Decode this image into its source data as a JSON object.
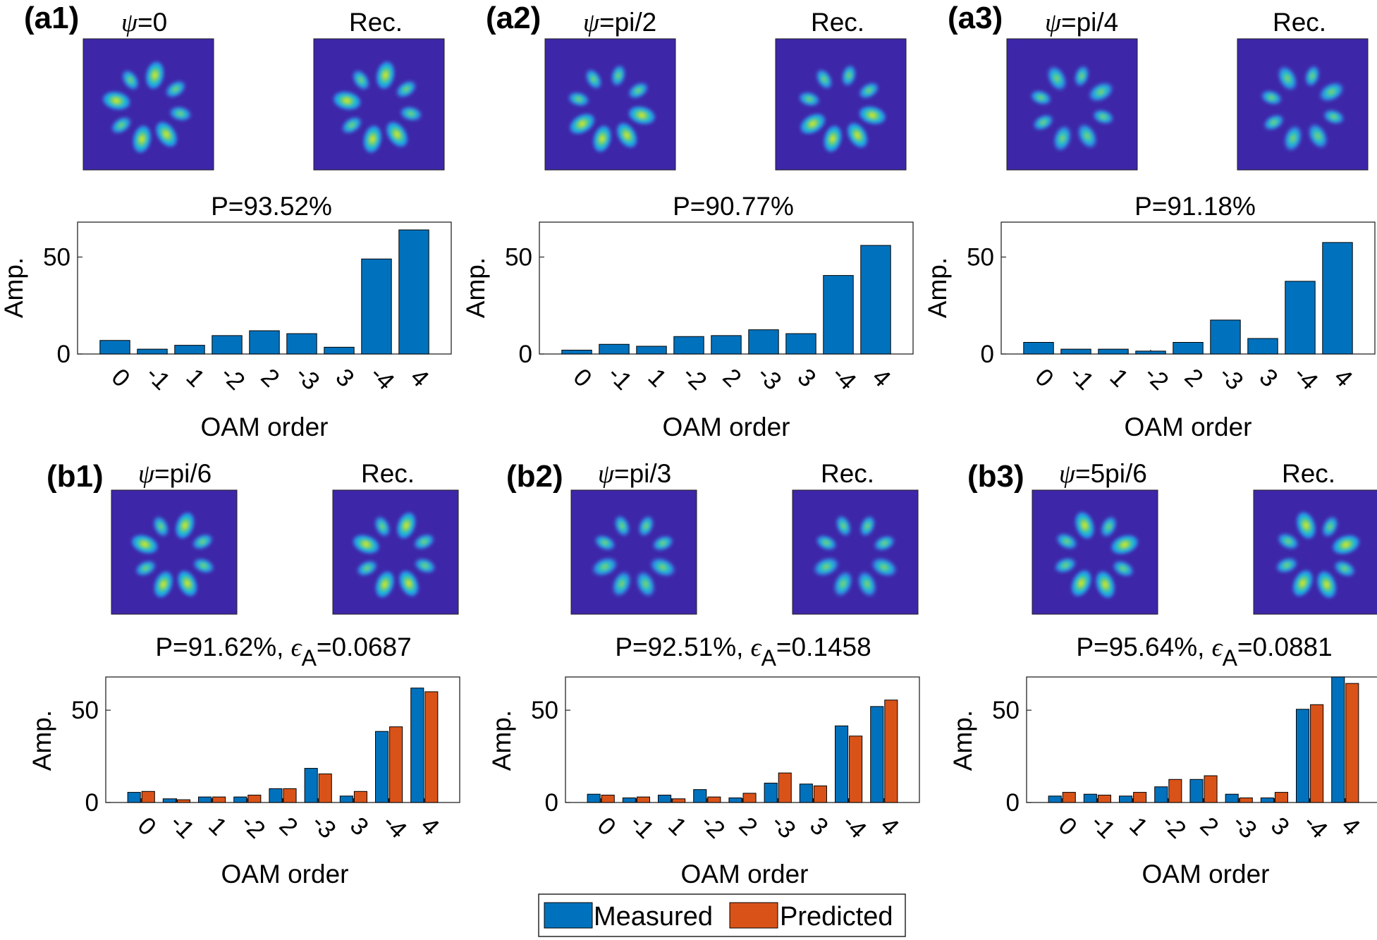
{
  "figure": {
    "colors": {
      "measured": "#0072BD",
      "predicted": "#D95319",
      "image_bg": "#3E26A8"
    },
    "psi_symbol": "ψ",
    "eps_symbol": "ϵ",
    "eps_subscript": "A",
    "legend": {
      "measured": "Measured",
      "predicted": "Predicted"
    },
    "panels": [
      {
        "label": "(a1)",
        "psi_value": "=0",
        "rec_label": "Rec.",
        "p_text": "P=93.52%",
        "eps_text": "",
        "intensity": 1.0,
        "tilt": 0
      },
      {
        "label": "(a2)",
        "psi_value": "=pi/2",
        "rec_label": "Rec.",
        "p_text": "P=90.77%",
        "eps_text": "",
        "intensity": 0.82,
        "tilt": 1
      },
      {
        "label": "(a3)",
        "psi_value": "=pi/4",
        "rec_label": "Rec.",
        "p_text": "P=91.18%",
        "eps_text": "",
        "intensity": 0.74,
        "tilt": 2
      },
      {
        "label": "(b1)",
        "psi_value": "=pi/6",
        "rec_label": "Rec.",
        "p_text": "P=91.62%, ",
        "eps_text": "=0.0687",
        "intensity": 0.85,
        "tilt": 3
      },
      {
        "label": "(b2)",
        "psi_value": "=pi/3",
        "rec_label": "Rec.",
        "p_text": "P=92.51%, ",
        "eps_text": "=0.1458",
        "intensity": 0.8,
        "tilt": 4
      },
      {
        "label": "(b3)",
        "psi_value": "=5pi/6",
        "rec_label": "Rec.",
        "p_text": "P=95.64%, ",
        "eps_text": "=0.0881",
        "intensity": 1.0,
        "tilt": 5
      }
    ]
  },
  "chart_data": [
    {
      "type": "bar",
      "title": "P=93.52%",
      "xlabel": "OAM order",
      "ylabel": "Amp.",
      "categories": [
        "0",
        "-1",
        "1",
        "-2",
        "2",
        "-3",
        "3",
        "-4",
        "4"
      ],
      "ylim": [
        0,
        68
      ],
      "yticks": [
        0,
        50
      ],
      "series": [
        {
          "name": "Measured",
          "values": [
            7,
            2.5,
            4.5,
            9.5,
            12,
            10.5,
            3.5,
            49,
            64
          ]
        }
      ]
    },
    {
      "type": "bar",
      "title": "P=90.77%",
      "xlabel": "OAM order",
      "ylabel": "Amp.",
      "categories": [
        "0",
        "-1",
        "1",
        "-2",
        "2",
        "-3",
        "3",
        "-4",
        "4"
      ],
      "ylim": [
        0,
        68
      ],
      "yticks": [
        0,
        50
      ],
      "series": [
        {
          "name": "Measured",
          "values": [
            2,
            5,
            4,
            9,
            9.5,
            12.5,
            10.5,
            40.5,
            56
          ]
        }
      ]
    },
    {
      "type": "bar",
      "title": "P=91.18%",
      "xlabel": "OAM order",
      "ylabel": "Amp.",
      "categories": [
        "0",
        "-1",
        "1",
        "-2",
        "2",
        "-3",
        "3",
        "-4",
        "4"
      ],
      "ylim": [
        0,
        68
      ],
      "yticks": [
        0,
        50
      ],
      "series": [
        {
          "name": "Measured",
          "values": [
            6,
            2.5,
            2.5,
            1.5,
            6,
            17.5,
            8,
            37.5,
            57.5
          ]
        }
      ]
    },
    {
      "type": "bar",
      "title": "P=91.62%, ϵA=0.0687",
      "xlabel": "OAM order",
      "ylabel": "Amp.",
      "categories": [
        "0",
        "-1",
        "1",
        "-2",
        "2",
        "-3",
        "3",
        "-4",
        "4"
      ],
      "ylim": [
        0,
        68
      ],
      "yticks": [
        0,
        50
      ],
      "series": [
        {
          "name": "Measured",
          "values": [
            5.5,
            2,
            3,
            3,
            7.5,
            18.5,
            3.5,
            38.5,
            62
          ]
        },
        {
          "name": "Predicted",
          "values": [
            6,
            1.5,
            3,
            4,
            7.5,
            15.5,
            6,
            41,
            60
          ]
        }
      ]
    },
    {
      "type": "bar",
      "title": "P=92.51%, ϵA=0.1458",
      "xlabel": "OAM order",
      "ylabel": "Amp.",
      "categories": [
        "0",
        "-1",
        "1",
        "-2",
        "2",
        "-3",
        "3",
        "-4",
        "4"
      ],
      "ylim": [
        0,
        68
      ],
      "yticks": [
        0,
        50
      ],
      "series": [
        {
          "name": "Measured",
          "values": [
            4.5,
            2.5,
            4,
            7,
            2.5,
            10.5,
            10,
            41.5,
            52
          ]
        },
        {
          "name": "Predicted",
          "values": [
            4,
            3,
            2,
            3,
            5,
            16,
            9,
            36,
            55.5
          ]
        }
      ]
    },
    {
      "type": "bar",
      "title": "P=95.64%, ϵA=0.0881",
      "xlabel": "OAM order",
      "ylabel": "Amp.",
      "categories": [
        "0",
        "-1",
        "1",
        "-2",
        "2",
        "-3",
        "3",
        "-4",
        "4"
      ],
      "ylim": [
        0,
        68
      ],
      "yticks": [
        0,
        50
      ],
      "series": [
        {
          "name": "Measured",
          "values": [
            3.5,
            4.5,
            3.5,
            8.5,
            12.5,
            4.5,
            2.5,
            50.5,
            68
          ]
        },
        {
          "name": "Predicted",
          "values": [
            5.5,
            4,
            5.5,
            12.5,
            14.5,
            2.5,
            5.5,
            53,
            64.5
          ]
        }
      ]
    }
  ]
}
